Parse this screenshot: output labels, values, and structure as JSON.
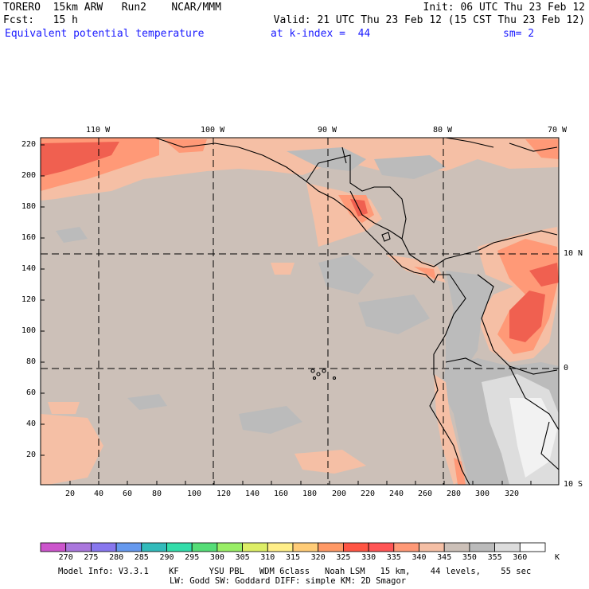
{
  "header": {
    "line1_left": "TORERO  15km ARW   Run2    NCAR/MMM",
    "line1_right": "Init: 06 UTC Thu 23 Feb 12",
    "line2_left": "Fcst:   15 h",
    "line2_right": "Valid: 21 UTC Thu 23 Feb 12 (15 CST Thu 23 Feb 12)",
    "line3_left": "Equivalent potential temperature",
    "line3_mid": "at k-index =  44",
    "line3_right": "sm= 2"
  },
  "axes": {
    "x_ticks": [
      "20",
      "40",
      "60",
      "80",
      "100",
      "120",
      "140",
      "160",
      "180",
      "200",
      "220",
      "240",
      "260",
      "280",
      "300",
      "320"
    ],
    "y_ticks": [
      "20",
      "40",
      "60",
      "80",
      "100",
      "120",
      "140",
      "160",
      "180",
      "200",
      "220"
    ],
    "lon_labels": [
      "110 W",
      "100 W",
      "90 W",
      "80 W",
      "70 W"
    ],
    "lat_labels": [
      "10 N",
      "0",
      "10 S"
    ]
  },
  "colorbar": {
    "colors": [
      "#cc55cc",
      "#aa77dd",
      "#8877ee",
      "#6699ee",
      "#33bbbb",
      "#33ddaa",
      "#55dd77",
      "#99ee66",
      "#ddee66",
      "#ffee88",
      "#ffcc77",
      "#ff9966",
      "#ff5544",
      "#ff5555",
      "#ff9977",
      "#f5bfa5",
      "#ccc0b8",
      "#bbbbbb",
      "#dddddd",
      "#ffffff"
    ],
    "labels": [
      "270",
      "275",
      "280",
      "285",
      "290",
      "295",
      "300",
      "305",
      "310",
      "315",
      "320",
      "325",
      "330",
      "335",
      "340",
      "345",
      "350",
      "355",
      "360"
    ],
    "unit": "K"
  },
  "footer": {
    "line1": "Model Info: V3.3.1    KF      YSU PBL   WDM 6class   Noah LSM   15 km,    44 levels,    55 sec",
    "line2": "LW: Godd SW: Goddard DIFF: simple KM: 2D Smagor"
  }
}
